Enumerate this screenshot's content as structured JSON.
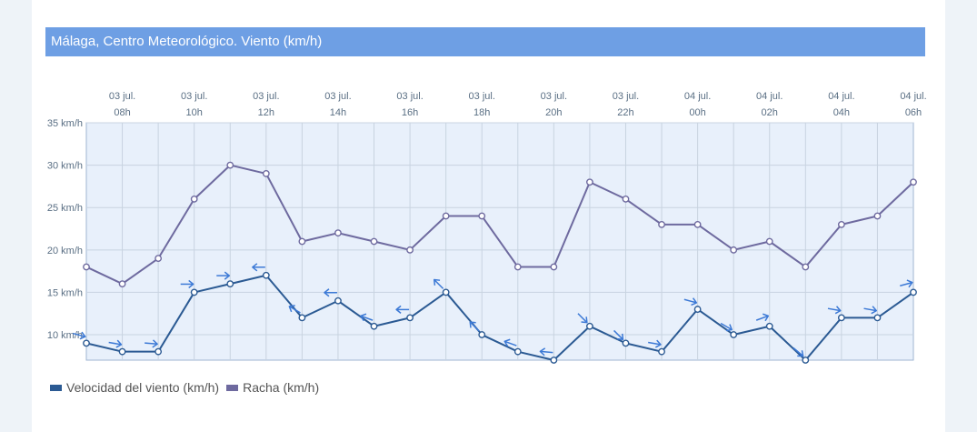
{
  "title": "Málaga, Centro Meteorológico. Viento (km/h)",
  "colors": {
    "title_bar": "#6e9fe4",
    "wind": "#2b5a93",
    "gust": "#6e6a9f",
    "arrow": "#3d7ad6",
    "plot_bg": "#e8f0fb",
    "grid": "#c8d3e0"
  },
  "chart_data": {
    "type": "line",
    "title": "Málaga, Centro Meteorológico. Viento (km/h)",
    "x": [
      "07h",
      "08h",
      "09h",
      "10h",
      "11h",
      "12h",
      "13h",
      "14h",
      "15h",
      "16h",
      "17h",
      "18h",
      "19h",
      "20h",
      "21h",
      "22h",
      "23h",
      "00h",
      "01h",
      "02h",
      "03h",
      "04h",
      "05h",
      "06h"
    ],
    "x_tick_labels": [
      {
        "index": 1,
        "date": "03 jul.",
        "hour": "08h"
      },
      {
        "index": 3,
        "date": "03 jul.",
        "hour": "10h"
      },
      {
        "index": 5,
        "date": "03 jul.",
        "hour": "12h"
      },
      {
        "index": 7,
        "date": "03 jul.",
        "hour": "14h"
      },
      {
        "index": 9,
        "date": "03 jul.",
        "hour": "16h"
      },
      {
        "index": 11,
        "date": "03 jul.",
        "hour": "18h"
      },
      {
        "index": 13,
        "date": "03 jul.",
        "hour": "20h"
      },
      {
        "index": 15,
        "date": "03 jul.",
        "hour": "22h"
      },
      {
        "index": 17,
        "date": "04 jul.",
        "hour": "00h"
      },
      {
        "index": 19,
        "date": "04 jul.",
        "hour": "02h"
      },
      {
        "index": 21,
        "date": "04 jul.",
        "hour": "04h"
      },
      {
        "index": 23,
        "date": "04 jul.",
        "hour": "06h"
      }
    ],
    "y_ticks": [
      {
        "value": 35,
        "label": "35 km/h"
      },
      {
        "value": 30,
        "label": "30 km/h"
      },
      {
        "value": 25,
        "label": "25 km/h"
      },
      {
        "value": 20,
        "label": "20 km/h"
      },
      {
        "value": 15,
        "label": "15 km/h"
      },
      {
        "value": 10,
        "label": "10 km/h"
      }
    ],
    "ylim": [
      7,
      35
    ],
    "grid": true,
    "legend_position": "bottom-left",
    "series": [
      {
        "name": "Velocidad del viento (km/h)",
        "values": [
          9,
          8,
          8,
          15,
          16,
          17,
          12,
          14,
          11,
          12,
          15,
          10,
          8,
          7,
          11,
          9,
          8,
          13,
          10,
          11,
          7,
          12,
          12,
          15
        ],
        "wind_direction_arrows_deg": [
          15,
          10,
          5,
          0,
          0,
          180,
          210,
          180,
          200,
          180,
          225,
          225,
          200,
          185,
          45,
          45,
          10,
          15,
          30,
          340,
          40,
          10,
          10,
          345
        ]
      },
      {
        "name": "Racha (km/h)",
        "values": [
          18,
          16,
          19,
          26,
          30,
          29,
          21,
          22,
          21,
          20,
          24,
          24,
          18,
          18,
          28,
          26,
          23,
          23,
          20,
          21,
          18,
          23,
          24,
          28
        ]
      }
    ]
  }
}
